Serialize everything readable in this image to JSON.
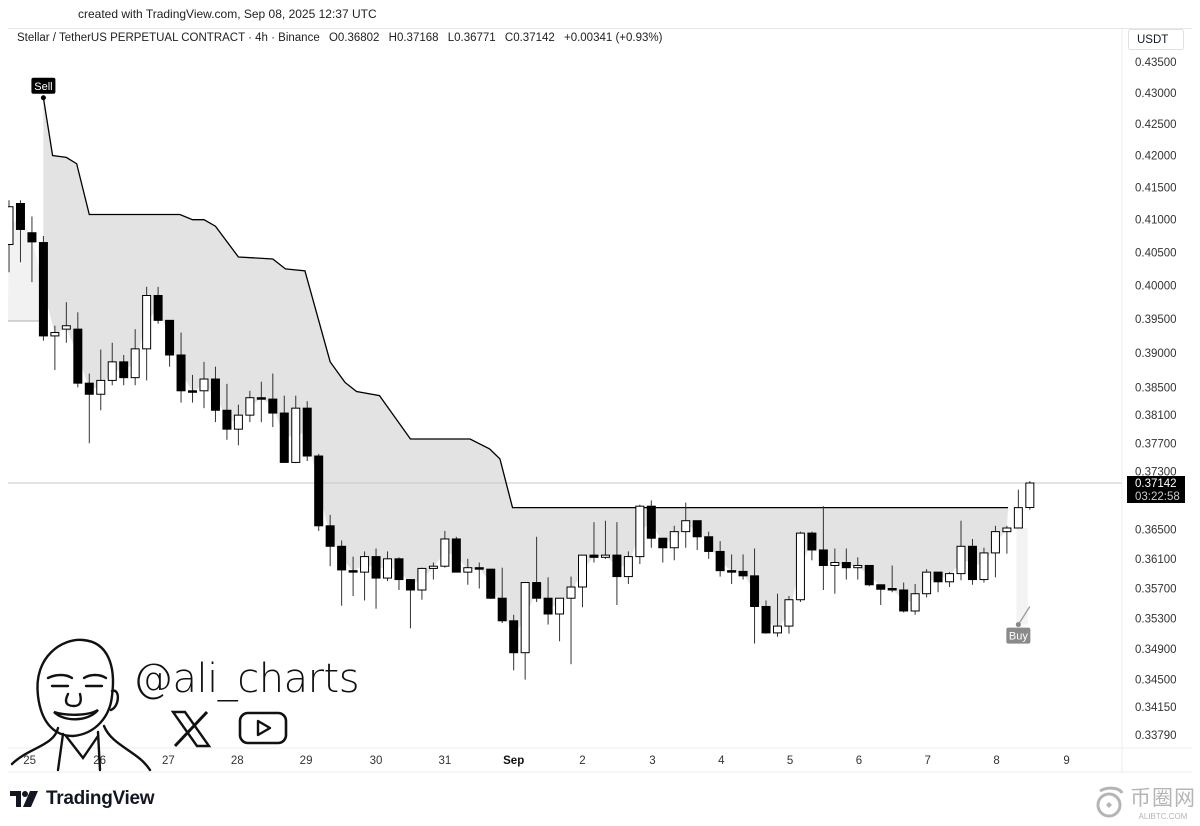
{
  "header": {
    "created": "created with TradingView.com, Sep 08, 2025 12:37 UTC",
    "symbol": "Stellar / TetherUS PERPETUAL CONTRACT · 4h · Binance",
    "open": "O0.36802",
    "high": "H0.37168",
    "low": "L0.36771",
    "close": "C0.37142",
    "change": "+0.00341 (+0.93%)"
  },
  "currency": "USDT",
  "last_price": {
    "value": "0.37142",
    "countdown": "03:22:58",
    "price": 0.37142
  },
  "watermark": {
    "handle": "@ali_charts",
    "icons": [
      "x-logo-icon",
      "youtube-icon"
    ]
  },
  "footer": {
    "brand": "TradingView",
    "site_watermark_cn": "币圈网",
    "site_watermark_en": "ALIBTC.COM"
  },
  "colors": {
    "bull": "#ffffff",
    "bear": "#000000",
    "supertrend": "#000000",
    "fill": "#e3e3e3",
    "price_line": "#c8c8c8"
  },
  "chart_data": {
    "type": "candlestick",
    "title": "Stellar / TetherUS PERPETUAL CONTRACT · 4h · Binance",
    "ylabel": "USDT",
    "yscale": "log",
    "ylim": [
      0.3379,
      0.435
    ],
    "y_ticks": [
      "0.43500",
      "0.43000",
      "0.42500",
      "0.42000",
      "0.41500",
      "0.41000",
      "0.40500",
      "0.40000",
      "0.39500",
      "0.39000",
      "0.38500",
      "0.38100",
      "0.37700",
      "0.37300",
      "0.36500",
      "0.36100",
      "0.35700",
      "0.35300",
      "0.34900",
      "0.34500",
      "0.34150",
      "0.33790"
    ],
    "x_ticks": [
      {
        "label": "25",
        "index": 1.8
      },
      {
        "label": "26",
        "index": 7.9
      },
      {
        "label": "27",
        "index": 13.9
      },
      {
        "label": "28",
        "index": 19.9
      },
      {
        "label": "29",
        "index": 25.9
      },
      {
        "label": "30",
        "index": 32.0
      },
      {
        "label": "31",
        "index": 38.0
      },
      {
        "label": "Sep",
        "index": 44.0,
        "bold": true
      },
      {
        "label": "2",
        "index": 50.0
      },
      {
        "label": "3",
        "index": 56.1
      },
      {
        "label": "4",
        "index": 62.1
      },
      {
        "label": "5",
        "index": 68.1
      },
      {
        "label": "6",
        "index": 74.1
      },
      {
        "label": "7",
        "index": 80.1
      },
      {
        "label": "8",
        "index": 86.1
      },
      {
        "label": "9",
        "index": 92.2
      }
    ],
    "candles": [
      [
        0.4062,
        0.413,
        0.402,
        0.412
      ],
      [
        0.4125,
        0.413,
        0.4035,
        0.4085
      ],
      [
        0.408,
        0.4105,
        0.4005,
        0.4066
      ],
      [
        0.4065,
        0.4075,
        0.3918,
        0.3925
      ],
      [
        0.3925,
        0.394,
        0.3875,
        0.393
      ],
      [
        0.3935,
        0.3975,
        0.3915,
        0.394
      ],
      [
        0.3935,
        0.396,
        0.385,
        0.3856
      ],
      [
        0.3856,
        0.387,
        0.377,
        0.384
      ],
      [
        0.384,
        0.3905,
        0.3817,
        0.386
      ],
      [
        0.386,
        0.3915,
        0.3853,
        0.3887
      ],
      [
        0.3887,
        0.3897,
        0.3853,
        0.3864
      ],
      [
        0.3864,
        0.3935,
        0.3853,
        0.3906
      ],
      [
        0.3906,
        0.3998,
        0.386,
        0.3985
      ],
      [
        0.3985,
        0.3998,
        0.3943,
        0.3948
      ],
      [
        0.3948,
        0.3948,
        0.388,
        0.3897
      ],
      [
        0.3897,
        0.393,
        0.3828,
        0.3845
      ],
      [
        0.3845,
        0.3868,
        0.3828,
        0.3843
      ],
      [
        0.3845,
        0.3887,
        0.382,
        0.3862
      ],
      [
        0.3862,
        0.388,
        0.38,
        0.3817
      ],
      [
        0.3817,
        0.3855,
        0.3775,
        0.379
      ],
      [
        0.379,
        0.3825,
        0.3767,
        0.381
      ],
      [
        0.381,
        0.3845,
        0.38,
        0.3835
      ],
      [
        0.3835,
        0.3858,
        0.38,
        0.3833
      ],
      [
        0.3833,
        0.387,
        0.3793,
        0.3813
      ],
      [
        0.3813,
        0.3838,
        0.3743,
        0.3743
      ],
      [
        0.3743,
        0.3838,
        0.3742,
        0.382
      ],
      [
        0.382,
        0.383,
        0.3745,
        0.3752
      ],
      [
        0.3752,
        0.3755,
        0.3648,
        0.3655
      ],
      [
        0.3655,
        0.367,
        0.36,
        0.3627
      ],
      [
        0.3627,
        0.3635,
        0.3547,
        0.3595
      ],
      [
        0.3594,
        0.3613,
        0.356,
        0.3592
      ],
      [
        0.3592,
        0.362,
        0.3554,
        0.3613
      ],
      [
        0.3613,
        0.3624,
        0.3543,
        0.3584
      ],
      [
        0.3584,
        0.362,
        0.358,
        0.361
      ],
      [
        0.361,
        0.3612,
        0.3568,
        0.3582
      ],
      [
        0.3582,
        0.3582,
        0.3517,
        0.3568
      ],
      [
        0.3568,
        0.3598,
        0.3555,
        0.3597
      ],
      [
        0.3597,
        0.3605,
        0.3582,
        0.36
      ],
      [
        0.36,
        0.3648,
        0.3598,
        0.3637
      ],
      [
        0.3637,
        0.364,
        0.3592,
        0.3592
      ],
      [
        0.3592,
        0.361,
        0.3575,
        0.3598
      ],
      [
        0.3598,
        0.3605,
        0.357,
        0.3596
      ],
      [
        0.3596,
        0.3596,
        0.3556,
        0.3557
      ],
      [
        0.3557,
        0.3598,
        0.3524,
        0.3527
      ],
      [
        0.3527,
        0.3535,
        0.3462,
        0.3485
      ],
      [
        0.3485,
        0.3578,
        0.345,
        0.3578
      ],
      [
        0.3578,
        0.364,
        0.3552,
        0.3557
      ],
      [
        0.3557,
        0.3585,
        0.3522,
        0.3536
      ],
      [
        0.3536,
        0.3557,
        0.35,
        0.3557
      ],
      [
        0.3557,
        0.3586,
        0.347,
        0.3572
      ],
      [
        0.3572,
        0.3615,
        0.3545,
        0.3615
      ],
      [
        0.3615,
        0.366,
        0.3605,
        0.3612
      ],
      [
        0.3612,
        0.3662,
        0.361,
        0.3615
      ],
      [
        0.3615,
        0.366,
        0.3548,
        0.3586
      ],
      [
        0.3586,
        0.362,
        0.3576,
        0.3613
      ],
      [
        0.3613,
        0.3684,
        0.3603,
        0.3682
      ],
      [
        0.3682,
        0.369,
        0.3625,
        0.3638
      ],
      [
        0.3638,
        0.3638,
        0.3605,
        0.3625
      ],
      [
        0.3625,
        0.3655,
        0.3608,
        0.3647
      ],
      [
        0.3647,
        0.3687,
        0.3625,
        0.3662
      ],
      [
        0.3662,
        0.3662,
        0.3622,
        0.364
      ],
      [
        0.364,
        0.3647,
        0.361,
        0.362
      ],
      [
        0.362,
        0.3634,
        0.3586,
        0.3594
      ],
      [
        0.3594,
        0.3616,
        0.3576,
        0.3592
      ],
      [
        0.3593,
        0.3616,
        0.3582,
        0.3587
      ],
      [
        0.3587,
        0.3624,
        0.3497,
        0.3546
      ],
      [
        0.3546,
        0.3554,
        0.351,
        0.3511
      ],
      [
        0.3511,
        0.3563,
        0.3506,
        0.352
      ],
      [
        0.352,
        0.356,
        0.351,
        0.3555
      ],
      [
        0.3555,
        0.3647,
        0.3552,
        0.3645
      ],
      [
        0.3645,
        0.3647,
        0.3608,
        0.3622
      ],
      [
        0.3622,
        0.3682,
        0.3568,
        0.3601
      ],
      [
        0.3601,
        0.3624,
        0.3563,
        0.3605
      ],
      [
        0.3605,
        0.3624,
        0.3582,
        0.3598
      ],
      [
        0.3598,
        0.3612,
        0.3582,
        0.3601
      ],
      [
        0.3601,
        0.3601,
        0.3573,
        0.3575
      ],
      [
        0.3575,
        0.3575,
        0.3548,
        0.3569
      ],
      [
        0.357,
        0.3601,
        0.3565,
        0.3568
      ],
      [
        0.3568,
        0.3578,
        0.3538,
        0.354
      ],
      [
        0.354,
        0.3576,
        0.3535,
        0.3563
      ],
      [
        0.3563,
        0.3596,
        0.3558,
        0.3592
      ],
      [
        0.3592,
        0.3592,
        0.3565,
        0.3579
      ],
      [
        0.3579,
        0.3592,
        0.3572,
        0.359
      ],
      [
        0.359,
        0.3662,
        0.3581,
        0.3627
      ],
      [
        0.3627,
        0.3637,
        0.3575,
        0.3582
      ],
      [
        0.3582,
        0.3625,
        0.3578,
        0.3618
      ],
      [
        0.3618,
        0.3655,
        0.3585,
        0.3647
      ],
      [
        0.3647,
        0.3655,
        0.3617,
        0.3652
      ],
      [
        0.3652,
        0.3705,
        0.3652,
        0.368
      ],
      [
        0.36802,
        0.37168,
        0.36771,
        0.37142
      ]
    ],
    "candle_fields": [
      "open",
      "high",
      "low",
      "close"
    ],
    "supertrend_up_before": [
      [
        -0.1,
        0.3947
      ],
      [
        3,
        0.3947
      ]
    ],
    "supertrend_down": [
      [
        3,
        0.4292
      ],
      [
        3.8,
        0.42
      ],
      [
        5,
        0.4197
      ],
      [
        5.9,
        0.4187
      ],
      [
        7,
        0.4108
      ],
      [
        14.9,
        0.4108
      ],
      [
        16,
        0.41
      ],
      [
        17,
        0.41
      ],
      [
        18,
        0.409
      ],
      [
        20,
        0.4043
      ],
      [
        23,
        0.404
      ],
      [
        24.1,
        0.4025
      ],
      [
        25.8,
        0.4022
      ],
      [
        28,
        0.3887
      ],
      [
        29.3,
        0.3857
      ],
      [
        30.3,
        0.3844
      ],
      [
        32.3,
        0.3838
      ],
      [
        35,
        0.3776
      ],
      [
        40.2,
        0.3776
      ],
      [
        41.9,
        0.3762
      ],
      [
        42.8,
        0.3748
      ],
      [
        43.9,
        0.368
      ],
      [
        87.1,
        0.368
      ]
    ],
    "supertrend_up_after": [
      [
        88,
        0.3522
      ],
      [
        89,
        0.3546
      ]
    ],
    "signals": [
      {
        "label": "Sell",
        "index": 3,
        "price": 0.4292
      },
      {
        "label": "Buy",
        "index": 88,
        "price": 0.3522
      }
    ]
  }
}
